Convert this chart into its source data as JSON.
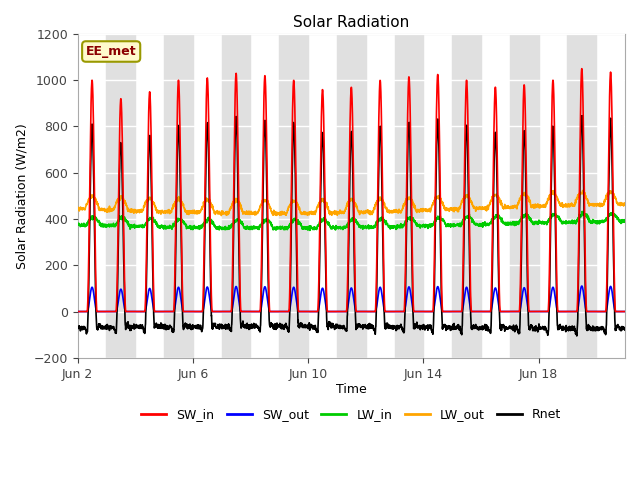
{
  "title": "Solar Radiation",
  "xlabel": "Time",
  "ylabel": "Solar Radiation (W/m2)",
  "ylim": [
    -200,
    1200
  ],
  "yticks": [
    -200,
    0,
    200,
    400,
    600,
    800,
    1000,
    1200
  ],
  "xtick_labels": [
    "Jun 2",
    "Jun 6",
    "Jun 10",
    "Jun 14",
    "Jun 18"
  ],
  "xtick_pos": [
    0,
    4,
    8,
    12,
    16
  ],
  "annotation_text": "EE_met",
  "annotation_color": "#8B0000",
  "annotation_bg": "#FFFACD",
  "annotation_border": "#999900",
  "series": {
    "SW_in": {
      "color": "#FF0000",
      "lw": 1.2
    },
    "SW_out": {
      "color": "#0000FF",
      "lw": 1.2
    },
    "LW_in": {
      "color": "#00CC00",
      "lw": 1.2
    },
    "LW_out": {
      "color": "#FFA500",
      "lw": 1.2
    },
    "Rnet": {
      "color": "#000000",
      "lw": 1.2
    }
  },
  "n_days": 19,
  "points_per_day": 144,
  "background_stripe_color": "#E0E0E0",
  "font_family": "DejaVu Sans",
  "title_fontsize": 11,
  "label_fontsize": 9,
  "tick_fontsize": 9
}
